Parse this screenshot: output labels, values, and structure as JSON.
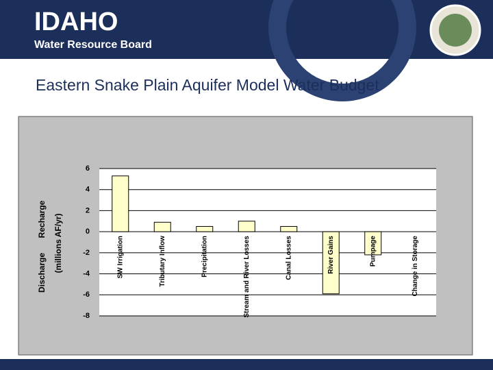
{
  "header": {
    "logo": "IDAHO",
    "subtitle": "Water Resource Board"
  },
  "slide_title": "Eastern Snake Plain Aquifer Model Water Budget",
  "chart_data": {
    "type": "bar",
    "y_axis_labels": [
      "Recharge",
      "Discharge",
      "(millions AF/yr)"
    ],
    "categories": [
      "SW Irrigation",
      "Tributary Inflow",
      "Precipitation",
      "Stream and River Losses",
      "Canal Losses",
      "River Gains",
      "Pumpage",
      "Change in Storage"
    ],
    "values": [
      5.3,
      0.9,
      0.5,
      1.0,
      0.5,
      -5.9,
      -2.2,
      0
    ],
    "color": "#ffffcc",
    "ylim": [
      -8,
      6
    ],
    "yticks": [
      -8,
      -6,
      -4,
      -2,
      0,
      2,
      4,
      6
    ],
    "grid": true
  }
}
